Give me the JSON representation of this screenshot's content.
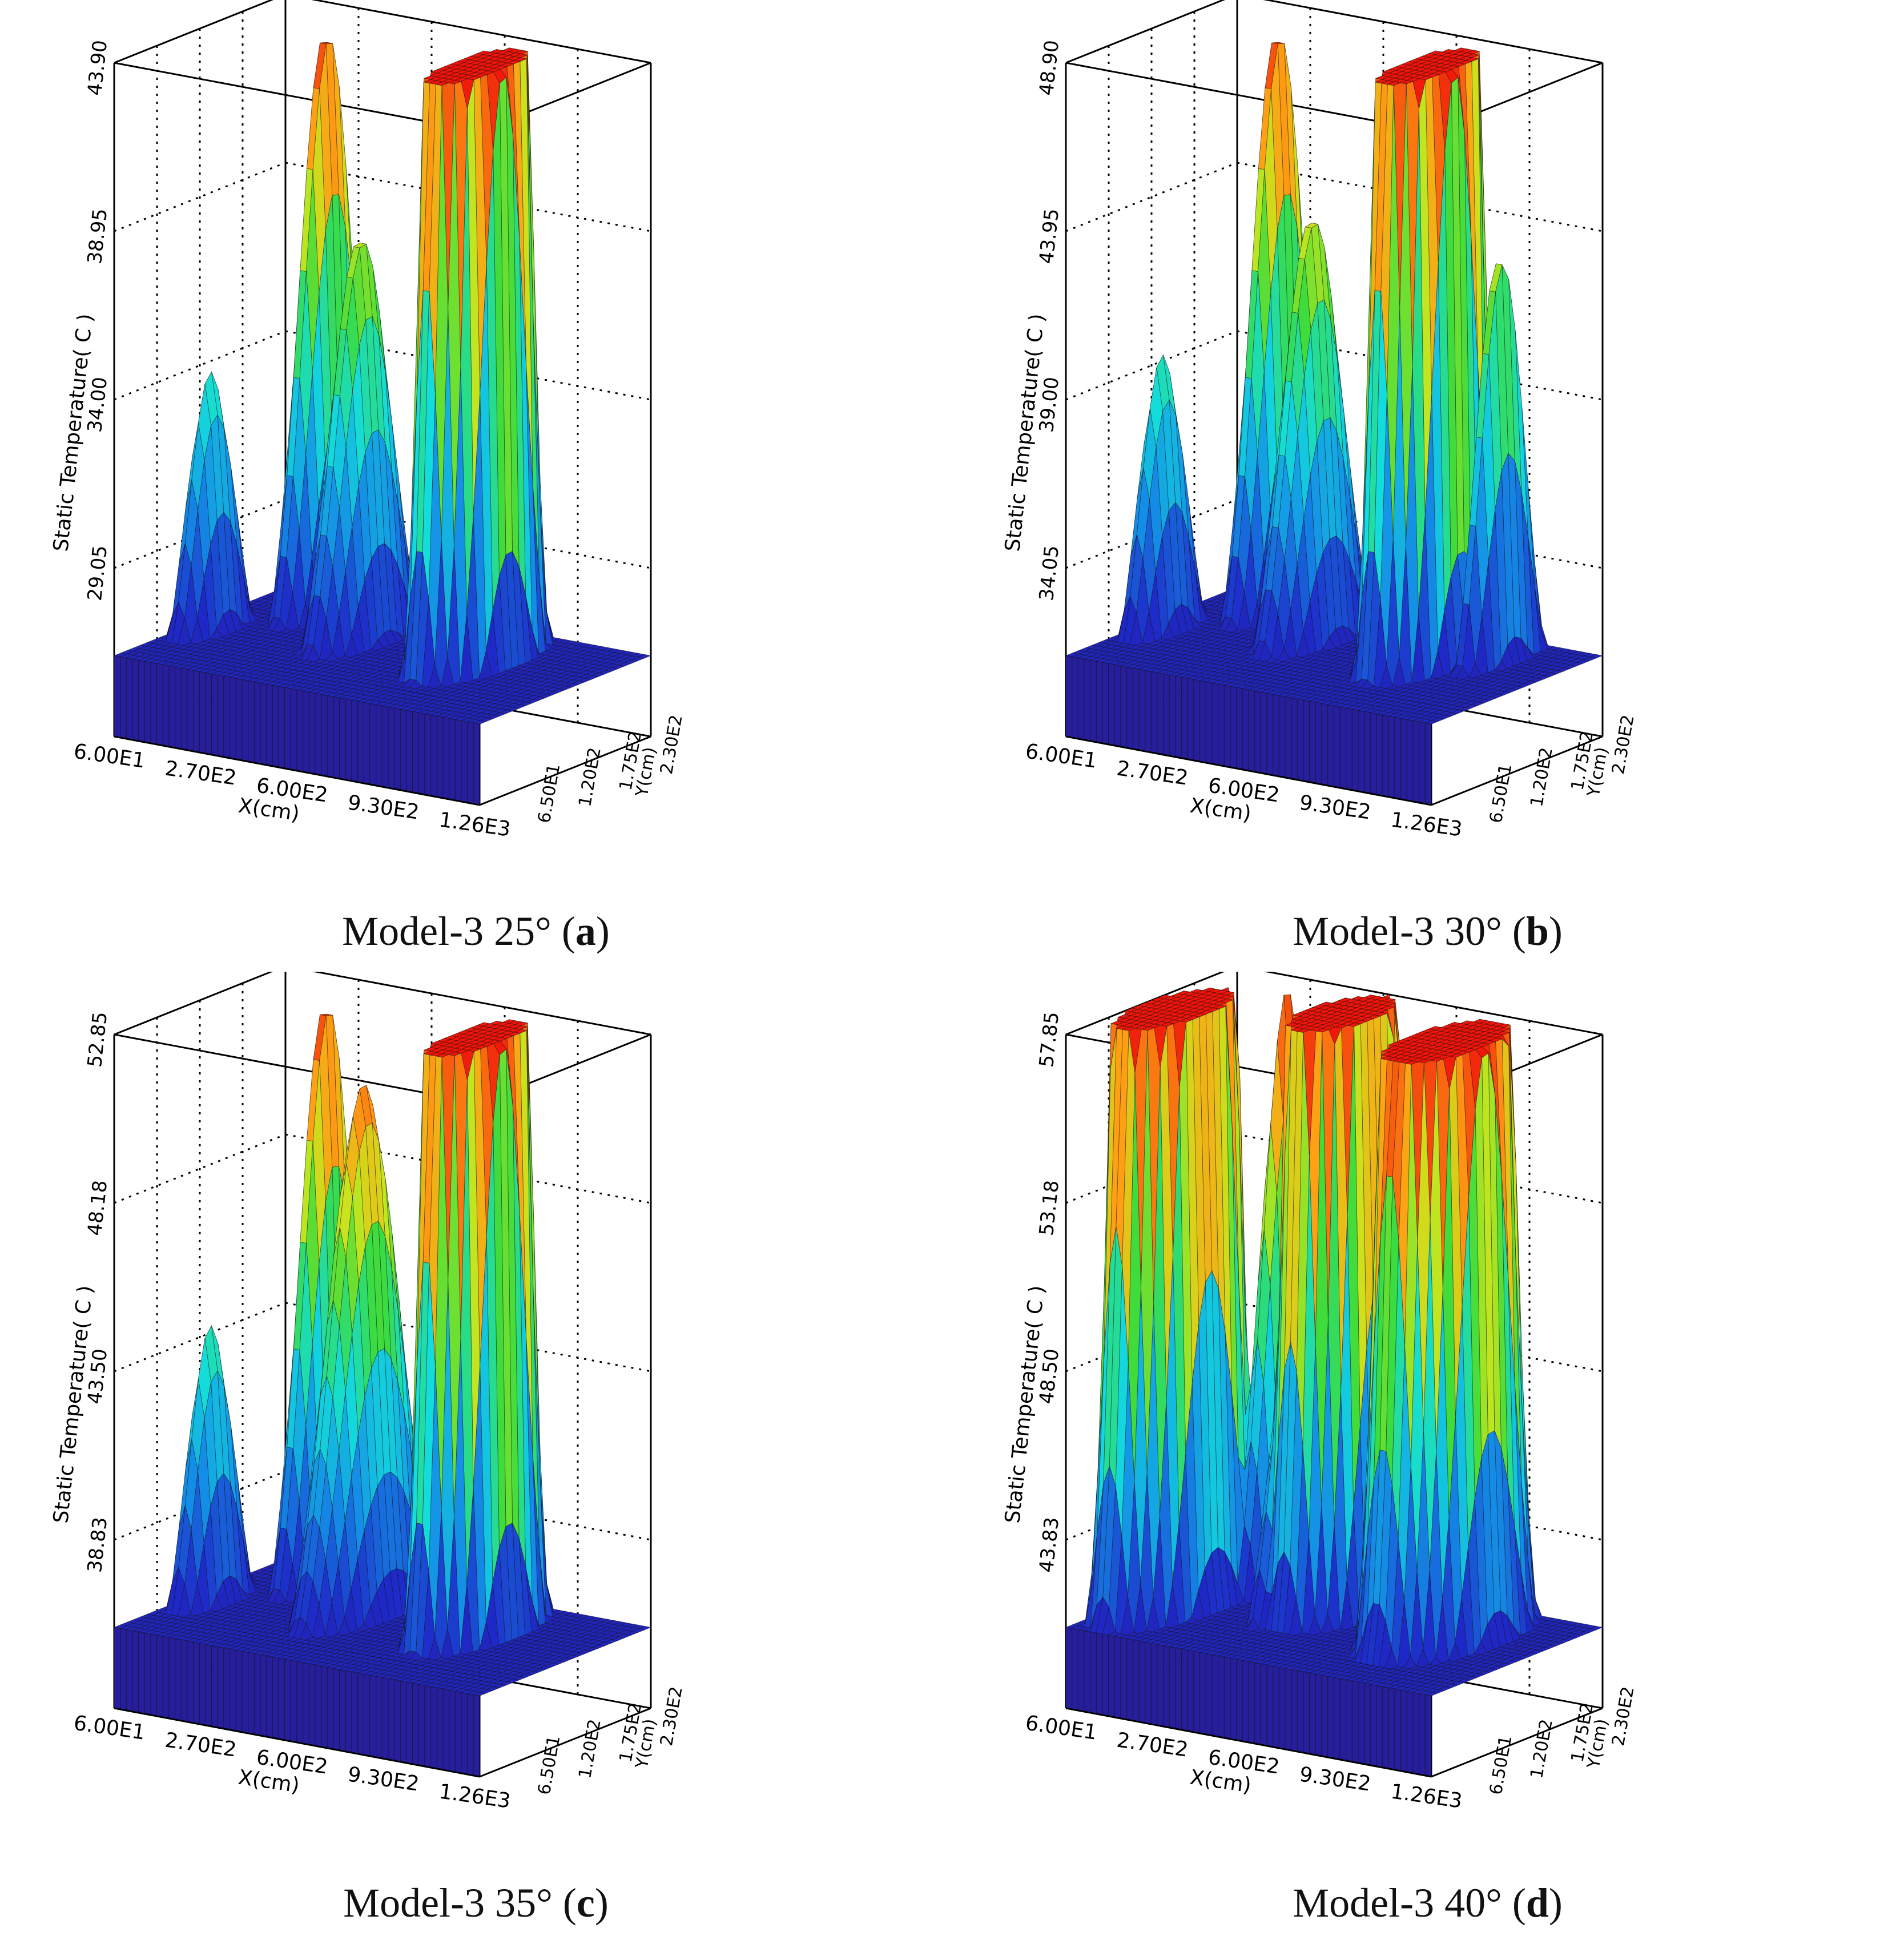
{
  "chart_data": [
    {
      "type": "surface",
      "caption": {
        "prefix": "Model-3 25° (",
        "letter": "a",
        "suffix": ")"
      },
      "zlabel": "Static Temperature( C )",
      "xlabel": "X(cm)",
      "ylabel": "Y(cm)",
      "z_ticks": [
        "29.05",
        "34.00",
        "38.95",
        "43.90"
      ],
      "z_range": [
        24.1,
        43.9
      ],
      "x_ticks": [
        "6.00E1",
        "2.70E2",
        "6.00E2",
        "9.30E2",
        "1.26E3"
      ],
      "y_ticks": [
        "6.50E1",
        "1.20E2",
        "1.75E2",
        "2.30E2"
      ],
      "peaks": [
        {
          "x": 270,
          "y": 200,
          "z": 43.9,
          "w": 55,
          "d": 45
        },
        {
          "x": 510,
          "y": 150,
          "z": 38.4,
          "w": 70,
          "d": 50
        },
        {
          "x": 120,
          "y": 110,
          "z": 34.0,
          "w": 55,
          "d": 40
        },
        {
          "x": 890,
          "y": 150,
          "z": 43.9,
          "w": 90,
          "d": 60,
          "flat": true
        }
      ]
    },
    {
      "type": "surface",
      "caption": {
        "prefix": "Model-3 30° (",
        "letter": "b",
        "suffix": ")"
      },
      "zlabel": "Static Temperature( C )",
      "xlabel": "X(cm)",
      "ylabel": "Y(cm)",
      "z_ticks": [
        "34.05",
        "39.00",
        "43.95",
        "48.90"
      ],
      "z_range": [
        29.1,
        48.9
      ],
      "x_ticks": [
        "6.00E1",
        "2.70E2",
        "6.00E2",
        "9.30E2",
        "1.26E3"
      ],
      "y_ticks": [
        "6.50E1",
        "1.20E2",
        "1.75E2",
        "2.30E2"
      ],
      "peaks": [
        {
          "x": 270,
          "y": 200,
          "z": 48.9,
          "w": 55,
          "d": 45
        },
        {
          "x": 510,
          "y": 150,
          "z": 44.0,
          "w": 70,
          "d": 50
        },
        {
          "x": 120,
          "y": 110,
          "z": 39.5,
          "w": 55,
          "d": 40
        },
        {
          "x": 890,
          "y": 150,
          "z": 48.9,
          "w": 90,
          "d": 60,
          "flat": true
        },
        {
          "x": 1050,
          "y": 180,
          "z": 44.0,
          "w": 40,
          "d": 40
        }
      ]
    },
    {
      "type": "surface",
      "caption": {
        "prefix": "Model-3 35° (",
        "letter": "c",
        "suffix": ")"
      },
      "zlabel": "Static Temperature( C )",
      "xlabel": "X(cm)",
      "ylabel": "Y(cm)",
      "z_ticks": [
        "38.83",
        "43.50",
        "48.18",
        "52.85"
      ],
      "z_range": [
        34.15,
        52.85
      ],
      "x_ticks": [
        "6.00E1",
        "2.70E2",
        "6.00E2",
        "9.30E2",
        "1.26E3"
      ],
      "y_ticks": [
        "6.50E1",
        "1.20E2",
        "1.75E2",
        "2.30E2"
      ],
      "peaks": [
        {
          "x": 270,
          "y": 200,
          "z": 52.85,
          "w": 55,
          "d": 45
        },
        {
          "x": 520,
          "y": 150,
          "z": 51.0,
          "w": 80,
          "d": 60
        },
        {
          "x": 120,
          "y": 110,
          "z": 44.0,
          "w": 55,
          "d": 40
        },
        {
          "x": 890,
          "y": 150,
          "z": 52.85,
          "w": 90,
          "d": 60,
          "flat": true
        }
      ]
    },
    {
      "type": "surface",
      "caption": {
        "prefix": "Model-3 40° (",
        "letter": "d",
        "suffix": ")"
      },
      "zlabel": "Static Temperature( C )",
      "xlabel": "X(cm)",
      "ylabel": "Y(cm)",
      "z_ticks": [
        "43.83",
        "48.50",
        "53.18",
        "57.85"
      ],
      "z_range": [
        39.15,
        57.85
      ],
      "x_ticks": [
        "6.00E1",
        "2.70E2",
        "6.00E2",
        "9.30E2",
        "1.26E3"
      ],
      "y_ticks": [
        "6.50E1",
        "1.20E2",
        "1.75E2",
        "2.30E2"
      ],
      "peaks": [
        {
          "x": 160,
          "y": 110,
          "z": 57.85,
          "w": 110,
          "d": 70,
          "flat": true
        },
        {
          "x": 300,
          "y": 200,
          "z": 57.85,
          "w": 55,
          "d": 45
        },
        {
          "x": 560,
          "y": 170,
          "z": 57.85,
          "w": 110,
          "d": 60,
          "flat": true
        },
        {
          "x": 950,
          "y": 150,
          "z": 57.85,
          "w": 130,
          "d": 70,
          "flat": true
        },
        {
          "x": 480,
          "y": 150,
          "z": 52.0,
          "w": 50,
          "d": 50
        }
      ]
    }
  ]
}
